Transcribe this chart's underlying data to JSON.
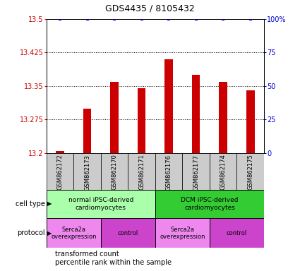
{
  "title": "GDS4435 / 8105432",
  "samples": [
    "GSM862172",
    "GSM862173",
    "GSM862170",
    "GSM862171",
    "GSM862176",
    "GSM862177",
    "GSM862174",
    "GSM862175"
  ],
  "transformed_counts": [
    13.205,
    13.3,
    13.36,
    13.345,
    13.41,
    13.375,
    13.36,
    13.34
  ],
  "percentile_ranks": [
    100,
    100,
    100,
    100,
    100,
    100,
    100,
    100
  ],
  "ylim_left": [
    13.2,
    13.5
  ],
  "ylim_right": [
    0,
    100
  ],
  "yticks_left": [
    13.2,
    13.275,
    13.35,
    13.425,
    13.5
  ],
  "yticks_right": [
    0,
    25,
    50,
    75,
    100
  ],
  "bar_color": "#cc0000",
  "dot_color": "#0000cc",
  "bar_width": 0.3,
  "cell_type_groups": [
    {
      "label": "normal iPSC-derived\ncardiomyocytes",
      "start": 0,
      "end": 4,
      "color": "#aaffaa"
    },
    {
      "label": "DCM iPSC-derived\ncardiomyocytes",
      "start": 4,
      "end": 8,
      "color": "#33cc33"
    }
  ],
  "protocol_groups": [
    {
      "label": "Serca2a\noverexpression",
      "start": 0,
      "end": 2,
      "color": "#ee88ee"
    },
    {
      "label": "control",
      "start": 2,
      "end": 4,
      "color": "#cc44cc"
    },
    {
      "label": "Serca2a\noverexpression",
      "start": 4,
      "end": 6,
      "color": "#ee88ee"
    },
    {
      "label": "control",
      "start": 6,
      "end": 8,
      "color": "#cc44cc"
    }
  ],
  "legend_items": [
    {
      "color": "#cc0000",
      "label": "transformed count"
    },
    {
      "color": "#0000cc",
      "label": "percentile rank within the sample"
    }
  ],
  "left_axis_color": "#cc0000",
  "right_axis_color": "#0000cc",
  "tick_label_area_color": "#cccccc",
  "title_fontsize": 9,
  "axis_fontsize": 7,
  "sample_fontsize": 6,
  "legend_fontsize": 7,
  "label_fontsize": 7
}
